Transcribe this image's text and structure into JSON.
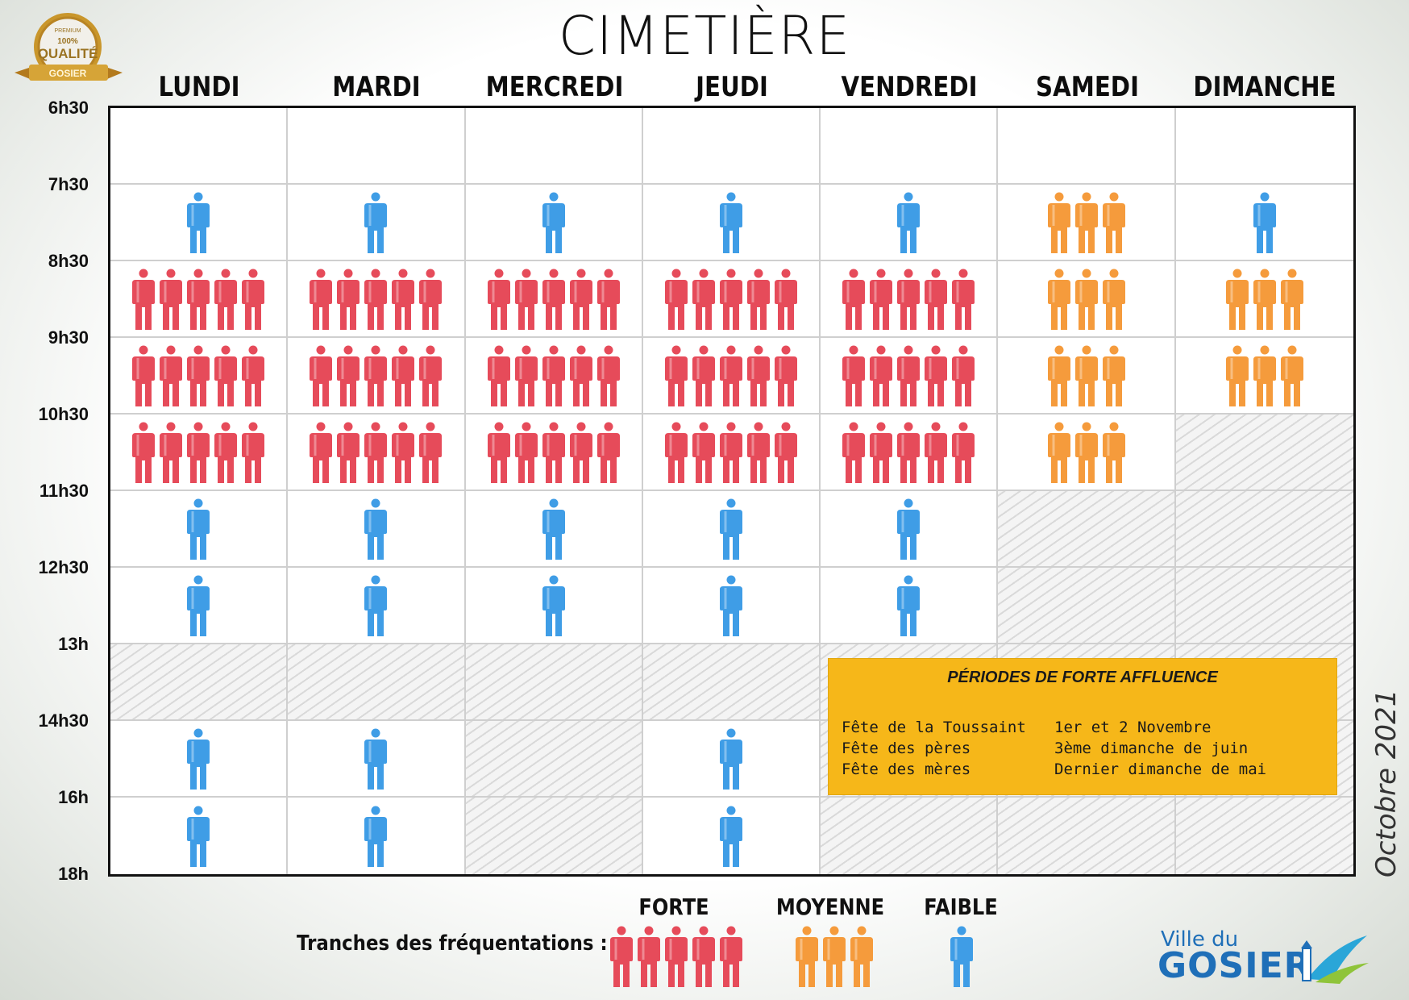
{
  "title": "CIMETIÈRE",
  "badge": {
    "top": "PREMIUM",
    "mid1": "100%",
    "mid2": "QUALITÉ",
    "ribbon": "GOSIER"
  },
  "days": [
    "LUNDI",
    "MARDI",
    "MERCREDI",
    "JEUDI",
    "VENDREDI",
    "SAMEDI",
    "DIMANCHE"
  ],
  "time_labels": [
    "6h30",
    "7h30",
    "8h30",
    "9h30",
    "10h30",
    "11h30",
    "12h30",
    "13h",
    "14h30",
    "16h",
    "18h"
  ],
  "levels": {
    "forte": {
      "count": 5,
      "color": "#e64b5a"
    },
    "moyenne": {
      "count": 3,
      "color": "#f59b3c"
    },
    "faible": {
      "count": 1,
      "color": "#3f9de6"
    }
  },
  "schedule": [
    [
      "empty",
      "empty",
      "empty",
      "empty",
      "empty",
      "empty",
      "empty"
    ],
    [
      "faible",
      "faible",
      "faible",
      "faible",
      "faible",
      "moyenne",
      "faible"
    ],
    [
      "forte",
      "forte",
      "forte",
      "forte",
      "forte",
      "moyenne",
      "moyenne"
    ],
    [
      "forte",
      "forte",
      "forte",
      "forte",
      "forte",
      "moyenne",
      "moyenne"
    ],
    [
      "forte",
      "forte",
      "forte",
      "forte",
      "forte",
      "moyenne",
      "closed"
    ],
    [
      "faible",
      "faible",
      "faible",
      "faible",
      "faible",
      "closed",
      "closed"
    ],
    [
      "faible",
      "faible",
      "faible",
      "faible",
      "faible",
      "closed",
      "closed"
    ],
    [
      "closed",
      "closed",
      "closed",
      "closed",
      "closed",
      "closed",
      "closed"
    ],
    [
      "faible",
      "faible",
      "closed",
      "faible",
      "closed",
      "closed",
      "closed"
    ],
    [
      "faible",
      "faible",
      "closed",
      "faible",
      "closed",
      "closed",
      "closed"
    ]
  ],
  "infobox": {
    "title": "PÉRIODES DE FORTE AFFLUENCE",
    "rows": [
      {
        "event": "Fête de la Toussaint",
        "date": "1er et 2 Novembre"
      },
      {
        "event": "Fête des pères",
        "date": "3ème dimanche de juin"
      },
      {
        "event": "Fête des mères",
        "date": "Dernier dimanche de mai"
      }
    ]
  },
  "side_date": "Octobre 2021",
  "legend": {
    "label": "Tranches des fréquentations :",
    "forte": "FORTE",
    "moyenne": "MOYENNE",
    "faible": "FAIBLE"
  },
  "logo": {
    "line1": "Ville du",
    "line2": "GOSIER"
  }
}
